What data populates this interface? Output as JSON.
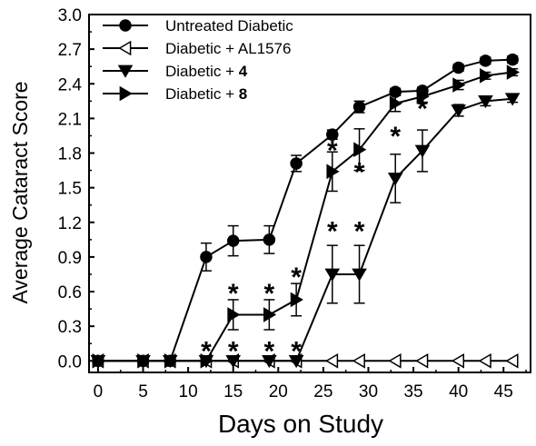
{
  "chart_data": {
    "type": "line",
    "xlabel": "Days on Study",
    "ylabel": "Average Cataract Score",
    "xlim": [
      -1,
      48
    ],
    "ylim": [
      -0.1,
      3.0
    ],
    "x_ticks": [
      "0",
      "5",
      "10",
      "15",
      "20",
      "25",
      "30",
      "35",
      "40",
      "45"
    ],
    "y_ticks": [
      "0.0",
      "0.3",
      "0.6",
      "0.9",
      "1.2",
      "1.5",
      "1.8",
      "2.1",
      "2.4",
      "2.7",
      "3.0"
    ],
    "legend_position": "top-left",
    "series": [
      {
        "name": "Untreated Diabetic",
        "name_prefix": "Diabetic + ",
        "marker": "circle",
        "filled": true,
        "points": [
          {
            "x": 0,
            "y": 0,
            "err": 0
          },
          {
            "x": 5,
            "y": 0,
            "err": 0
          },
          {
            "x": 8,
            "y": 0,
            "err": 0
          },
          {
            "x": 12,
            "y": 0.9,
            "err": 0.12
          },
          {
            "x": 15,
            "y": 1.04,
            "err": 0.13
          },
          {
            "x": 19,
            "y": 1.05,
            "err": 0.12
          },
          {
            "x": 22,
            "y": 1.71,
            "err": 0.07
          },
          {
            "x": 26,
            "y": 1.96,
            "err": 0.04
          },
          {
            "x": 29,
            "y": 2.2,
            "err": 0.05
          },
          {
            "x": 33,
            "y": 2.33,
            "err": 0.03
          },
          {
            "x": 36,
            "y": 2.34,
            "err": 0.03
          },
          {
            "x": 40,
            "y": 2.54,
            "err": 0.03
          },
          {
            "x": 43,
            "y": 2.6,
            "err": 0.03
          },
          {
            "x": 46,
            "y": 2.61,
            "err": 0.03
          }
        ]
      },
      {
        "name": "Diabetic + AL1576",
        "marker": "triangle-left",
        "filled": false,
        "points": [
          {
            "x": 0,
            "y": 0,
            "err": 0
          },
          {
            "x": 5,
            "y": 0,
            "err": 0
          },
          {
            "x": 8,
            "y": 0,
            "err": 0
          },
          {
            "x": 12,
            "y": 0,
            "err": 0
          },
          {
            "x": 15,
            "y": 0,
            "err": 0
          },
          {
            "x": 19,
            "y": 0,
            "err": 0
          },
          {
            "x": 22,
            "y": 0,
            "err": 0
          },
          {
            "x": 26,
            "y": 0,
            "err": 0
          },
          {
            "x": 29,
            "y": 0,
            "err": 0
          },
          {
            "x": 33,
            "y": 0,
            "err": 0
          },
          {
            "x": 36,
            "y": 0,
            "err": 0
          },
          {
            "x": 40,
            "y": 0,
            "err": 0
          },
          {
            "x": 43,
            "y": 0,
            "err": 0
          },
          {
            "x": 46,
            "y": 0,
            "err": 0
          }
        ]
      },
      {
        "name_prefix": "Diabetic + ",
        "name_bold": "4",
        "marker": "triangle-down",
        "filled": true,
        "points": [
          {
            "x": 0,
            "y": 0,
            "err": 0
          },
          {
            "x": 5,
            "y": 0,
            "err": 0
          },
          {
            "x": 8,
            "y": 0,
            "err": 0
          },
          {
            "x": 12,
            "y": 0,
            "err": 0
          },
          {
            "x": 15,
            "y": 0,
            "err": 0
          },
          {
            "x": 19,
            "y": 0,
            "err": 0
          },
          {
            "x": 22,
            "y": 0,
            "err": 0
          },
          {
            "x": 26,
            "y": 0.75,
            "err": 0.25
          },
          {
            "x": 29,
            "y": 0.75,
            "err": 0.25
          },
          {
            "x": 33,
            "y": 1.58,
            "err": 0.21
          },
          {
            "x": 36,
            "y": 1.82,
            "err": 0.18
          },
          {
            "x": 40,
            "y": 2.17,
            "err": 0.05
          },
          {
            "x": 43,
            "y": 2.25,
            "err": 0.04
          },
          {
            "x": 46,
            "y": 2.27,
            "err": 0.03
          }
        ]
      },
      {
        "name_prefix": "Diabetic + ",
        "name_bold": "8",
        "marker": "triangle-right",
        "filled": true,
        "points": [
          {
            "x": 0,
            "y": 0,
            "err": 0
          },
          {
            "x": 5,
            "y": 0,
            "err": 0
          },
          {
            "x": 8,
            "y": 0,
            "err": 0
          },
          {
            "x": 12,
            "y": 0,
            "err": 0
          },
          {
            "x": 15,
            "y": 0.4,
            "err": 0.13
          },
          {
            "x": 19,
            "y": 0.4,
            "err": 0.13
          },
          {
            "x": 22,
            "y": 0.53,
            "err": 0.14
          },
          {
            "x": 26,
            "y": 1.64,
            "err": 0.17
          },
          {
            "x": 29,
            "y": 1.83,
            "err": 0.18
          },
          {
            "x": 33,
            "y": 2.23,
            "err": 0.07
          },
          {
            "x": 36,
            "y": 2.29,
            "err": 0.05
          },
          {
            "x": 40,
            "y": 2.39,
            "err": 0.04
          },
          {
            "x": 43,
            "y": 2.47,
            "err": 0.03
          },
          {
            "x": 46,
            "y": 2.5,
            "err": 0.03
          }
        ]
      }
    ],
    "annotations": [
      {
        "text": "*",
        "x": 12,
        "y": 0.1
      },
      {
        "text": "*",
        "x": 15,
        "y": 0.1
      },
      {
        "text": "*",
        "x": 19,
        "y": 0.1
      },
      {
        "text": "*",
        "x": 22,
        "y": 0.1
      },
      {
        "text": "*",
        "x": 15,
        "y": 0.6
      },
      {
        "text": "*",
        "x": 19,
        "y": 0.6
      },
      {
        "text": "*",
        "x": 22,
        "y": 0.74
      },
      {
        "text": "*",
        "x": 26,
        "y": 1.14
      },
      {
        "text": "*",
        "x": 29,
        "y": 1.14
      },
      {
        "text": "*",
        "x": 26,
        "y": 1.84
      },
      {
        "text": "*",
        "x": 29,
        "y": 1.65
      },
      {
        "text": "*",
        "x": 33,
        "y": 1.96
      },
      {
        "text": "*",
        "x": 36,
        "y": 2.2
      }
    ]
  }
}
